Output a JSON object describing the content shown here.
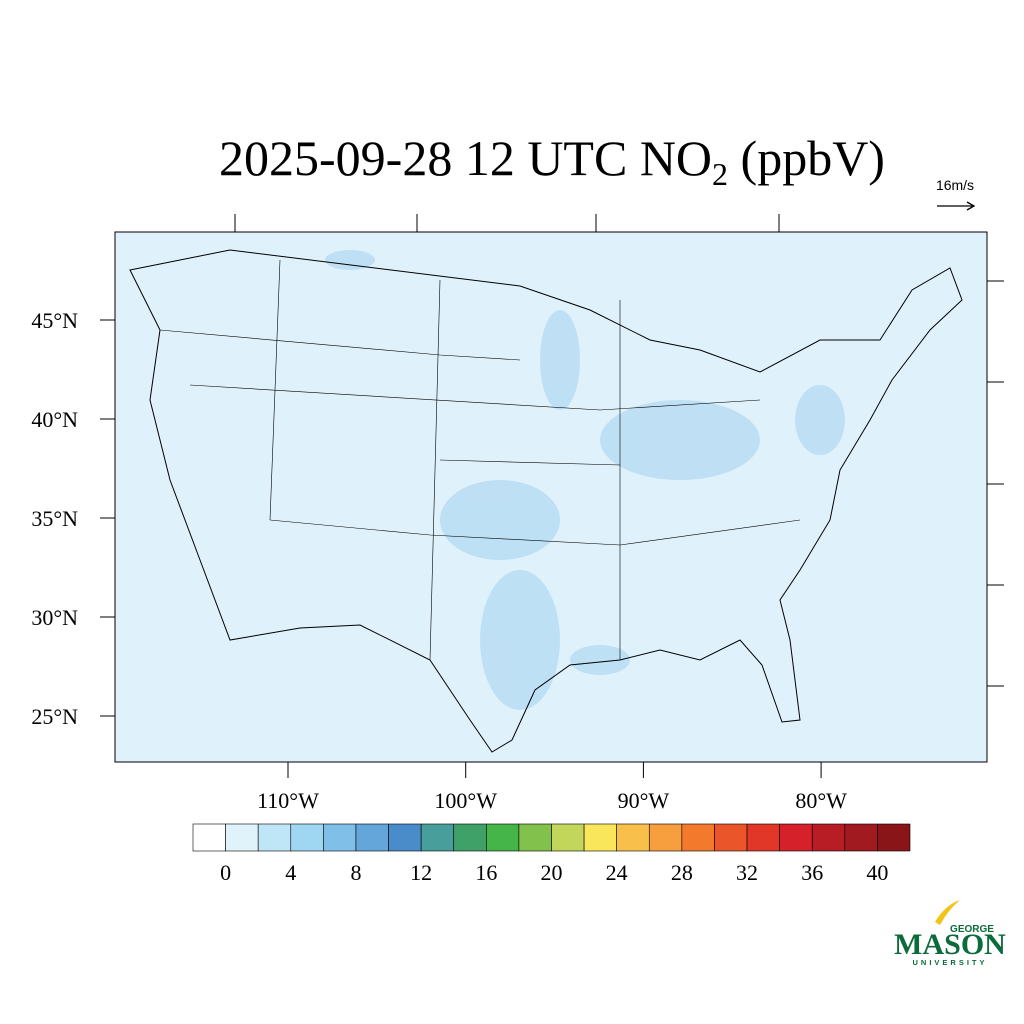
{
  "title": {
    "parts": [
      "2025-09-28 12 UTC NO",
      "2",
      " (ppbV)"
    ]
  },
  "wind_reference": "16m/s",
  "map": {
    "lat_ticks": [
      {
        "value": 45,
        "label": "45°N"
      },
      {
        "value": 40,
        "label": "40°N"
      },
      {
        "value": 35,
        "label": "35°N"
      },
      {
        "value": 30,
        "label": "30°N"
      },
      {
        "value": 25,
        "label": "25°N"
      }
    ],
    "lon_ticks": [
      {
        "value": -110,
        "label": "110°W"
      },
      {
        "value": -100,
        "label": "100°W"
      },
      {
        "value": -90,
        "label": "90°W"
      },
      {
        "value": -80,
        "label": "80°W"
      }
    ]
  },
  "colorbar": {
    "colors": [
      "#ffffff",
      "#e0f3fb",
      "#bfe6f7",
      "#9fd6f2",
      "#7fbfe8",
      "#64a5da",
      "#4a8bca",
      "#479e9a",
      "#3fa068",
      "#45b549",
      "#82c14c",
      "#c1d65a",
      "#f9e65a",
      "#f8c04a",
      "#f79e3e",
      "#f37a2c",
      "#ea552a",
      "#e03729",
      "#d4212a",
      "#b81c24",
      "#a01a20",
      "#8a1518"
    ],
    "levels": [
      0,
      4,
      8,
      12,
      16,
      20,
      24,
      28,
      32,
      36,
      40
    ]
  },
  "logo": {
    "top": "GEORGE",
    "main": "MASON",
    "bottom": "UNIVERSITY"
  }
}
